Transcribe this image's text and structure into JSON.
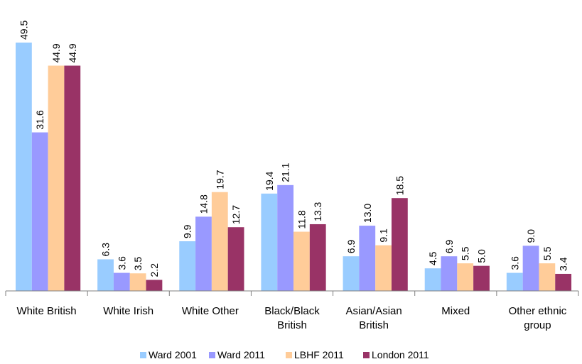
{
  "chart_data": {
    "type": "bar",
    "title": "",
    "xlabel": "",
    "ylabel": "",
    "ylim": [
      0,
      50
    ],
    "grid": false,
    "legend_position": "bottom",
    "categories": [
      [
        "White British"
      ],
      [
        "White Irish"
      ],
      [
        "White Other"
      ],
      [
        "Black/Black",
        "British"
      ],
      [
        "Asian/Asian",
        "British"
      ],
      [
        "Mixed"
      ],
      [
        "Other ethnic",
        "group"
      ]
    ],
    "series": [
      {
        "name": "Ward 2001",
        "color": "#99ccff",
        "values": [
          49.5,
          6.3,
          9.9,
          19.4,
          6.9,
          4.5,
          3.6
        ]
      },
      {
        "name": "Ward 2011",
        "color": "#9999ff",
        "values": [
          31.6,
          3.6,
          14.8,
          21.1,
          13.0,
          6.9,
          9.0
        ]
      },
      {
        "name": "LBHF 2011",
        "color": "#ffcc99",
        "values": [
          44.9,
          3.5,
          19.7,
          11.8,
          9.1,
          5.5,
          5.5
        ]
      },
      {
        "name": "London 2011",
        "color": "#993366",
        "values": [
          44.9,
          2.2,
          12.7,
          13.3,
          18.5,
          5.0,
          3.4
        ]
      }
    ],
    "axis_color": "#7f7f7f"
  }
}
